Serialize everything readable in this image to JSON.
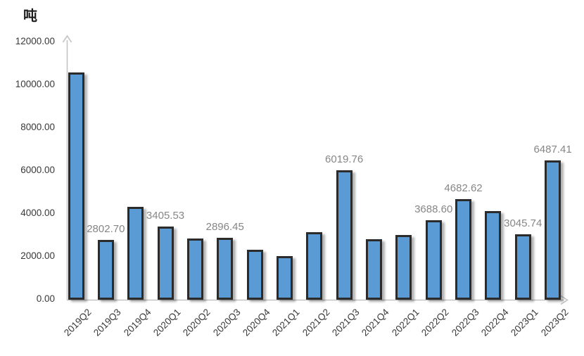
{
  "chart_data": {
    "type": "bar",
    "unit_label": "吨",
    "ylabel": "吨",
    "xlabel": "",
    "title": "",
    "categories": [
      "2019Q2",
      "2019Q3",
      "2019Q4",
      "2020Q1",
      "2020Q2",
      "2020Q3",
      "2020Q4",
      "2021Q1",
      "2021Q2",
      "2021Q3",
      "2021Q4",
      "2022Q1",
      "2022Q2",
      "2022Q3",
      "2022Q4",
      "2023Q1",
      "2023Q2"
    ],
    "values": [
      10590,
      2802.7,
      4330,
      3405.53,
      2850,
      2896.45,
      2330,
      2040,
      3150,
      6019.76,
      2820,
      3010,
      3688.6,
      4682.62,
      4130,
      3045.74,
      6487.41
    ],
    "data_labels": [
      "",
      "2802.70",
      "",
      "3405.53",
      "",
      "2896.45",
      "",
      "",
      "",
      "6019.76",
      "",
      "",
      "3688.60",
      "4682.62",
      "",
      "3045.74",
      "6487.41"
    ],
    "ylim": [
      0,
      12000
    ],
    "ytick_labels": [
      "0.00",
      "2000.00",
      "4000.00",
      "6000.00",
      "8000.00",
      "10000.00",
      "12000.00"
    ],
    "grid": false,
    "legend": false,
    "axis_arrows": true,
    "colors": {
      "bar_fill": "#5B9BD5",
      "bar_border": "#2B2B2B",
      "axis": "#C4C4C4",
      "tick_text": "#383838",
      "data_label_text": "#868686",
      "unit_text": "#1F1F1F"
    }
  }
}
